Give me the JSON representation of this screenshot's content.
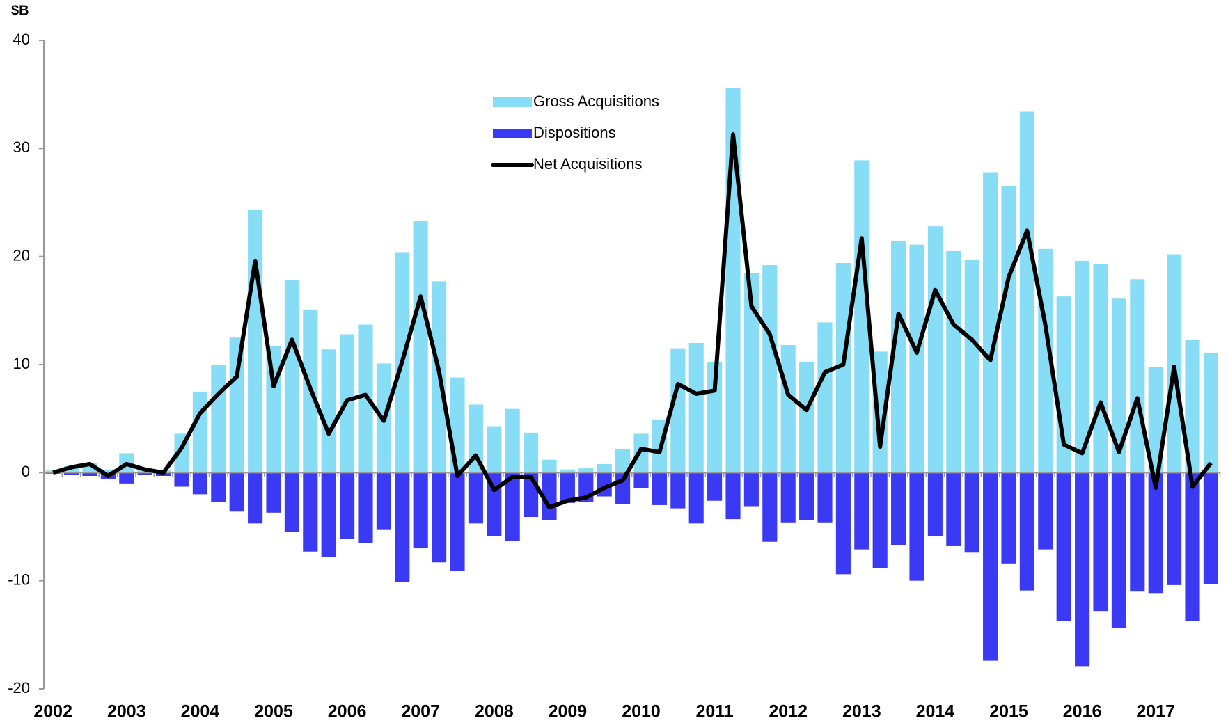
{
  "chart_data": {
    "type": "bar",
    "unit_label": "$B",
    "categories": [
      "2002",
      null,
      null,
      null,
      "2003",
      null,
      null,
      null,
      "2004",
      null,
      null,
      null,
      "2005",
      null,
      null,
      null,
      "2006",
      null,
      null,
      null,
      "2007",
      null,
      null,
      null,
      "2008",
      null,
      null,
      null,
      "2009",
      null,
      null,
      null,
      "2010",
      null,
      null,
      null,
      "2011",
      null,
      null,
      null,
      "2012",
      null,
      null,
      null,
      "2013",
      null,
      null,
      null,
      "2014",
      null,
      null,
      null,
      "2015",
      null,
      null,
      null,
      "2016",
      null,
      null,
      null,
      "2017",
      null,
      null,
      null
    ],
    "series": [
      {
        "name": "Gross Acquisitions",
        "type": "bar",
        "color": "#87ddf5",
        "values": [
          0.2,
          0.6,
          0.9,
          0.3,
          1.8,
          0.4,
          0.2,
          3.6,
          7.5,
          10.0,
          12.5,
          24.3,
          11.7,
          17.8,
          15.1,
          11.4,
          12.8,
          13.7,
          10.1,
          20.4,
          23.3,
          17.7,
          8.8,
          6.3,
          4.3,
          5.9,
          3.7,
          1.2,
          0.3,
          0.4,
          0.8,
          2.2,
          3.6,
          4.9,
          11.5,
          12.0,
          10.2,
          35.6,
          18.5,
          19.2,
          11.8,
          10.2,
          13.9,
          19.4,
          28.9,
          11.2,
          21.4,
          21.1,
          22.8,
          20.5,
          19.7,
          27.8,
          26.5,
          33.4,
          20.7,
          16.3,
          19.6,
          19.3,
          16.1,
          17.9,
          9.8,
          20.2,
          12.3,
          11.1
        ]
      },
      {
        "name": "Dispositions",
        "type": "bar",
        "color": "#3a3af5",
        "values": [
          -0.1,
          -0.2,
          -0.3,
          -0.6,
          -1.0,
          -0.2,
          -0.3,
          -1.3,
          -2.0,
          -2.7,
          -3.6,
          -4.7,
          -3.7,
          -5.5,
          -7.3,
          -7.8,
          -6.1,
          -6.5,
          -5.3,
          -10.1,
          -7.0,
          -8.3,
          -9.1,
          -4.7,
          -5.9,
          -6.3,
          -4.1,
          -4.4,
          -2.8,
          -2.7,
          -2.2,
          -2.9,
          -1.4,
          -3.0,
          -3.3,
          -4.7,
          -2.6,
          -4.3,
          -3.1,
          -6.4,
          -4.6,
          -4.4,
          -4.6,
          -9.4,
          -7.1,
          -8.8,
          -6.7,
          -10.0,
          -5.9,
          -6.8,
          -7.4,
          -17.4,
          -8.4,
          -10.9,
          -7.1,
          -13.7,
          -17.9,
          -12.8,
          -14.4,
          -11.0,
          -11.2,
          -10.4,
          -13.7,
          -10.3
        ]
      },
      {
        "name": "Net Acquisitions",
        "type": "line",
        "color": "#000000",
        "values": [
          0,
          0.5,
          0.8,
          -0.3,
          0.8,
          0.3,
          0,
          2.3,
          5.5,
          7.3,
          8.9,
          19.6,
          8.0,
          12.3,
          7.8,
          3.6,
          6.7,
          7.2,
          4.8,
          10.3,
          16.3,
          9.4,
          -0.3,
          1.6,
          -1.6,
          -0.4,
          -0.4,
          -3.2,
          -2.6,
          -2.3,
          -1.4,
          -0.7,
          2.2,
          1.9,
          8.2,
          7.3,
          7.6,
          31.3,
          15.4,
          12.8,
          7.2,
          5.8,
          9.3,
          10.0,
          21.7,
          2.4,
          14.7,
          11.1,
          16.9,
          13.7,
          12.3,
          10.4,
          18.1,
          22.4,
          13.6,
          2.6,
          1.8,
          6.5,
          1.9,
          6.9,
          -1.4,
          9.8,
          -1.3,
          0.9
        ]
      }
    ],
    "ylim": [
      -20,
      40
    ],
    "yticks": [
      -20,
      -10,
      0,
      10,
      20,
      30,
      40
    ],
    "grid": false,
    "legend": "top-center"
  }
}
